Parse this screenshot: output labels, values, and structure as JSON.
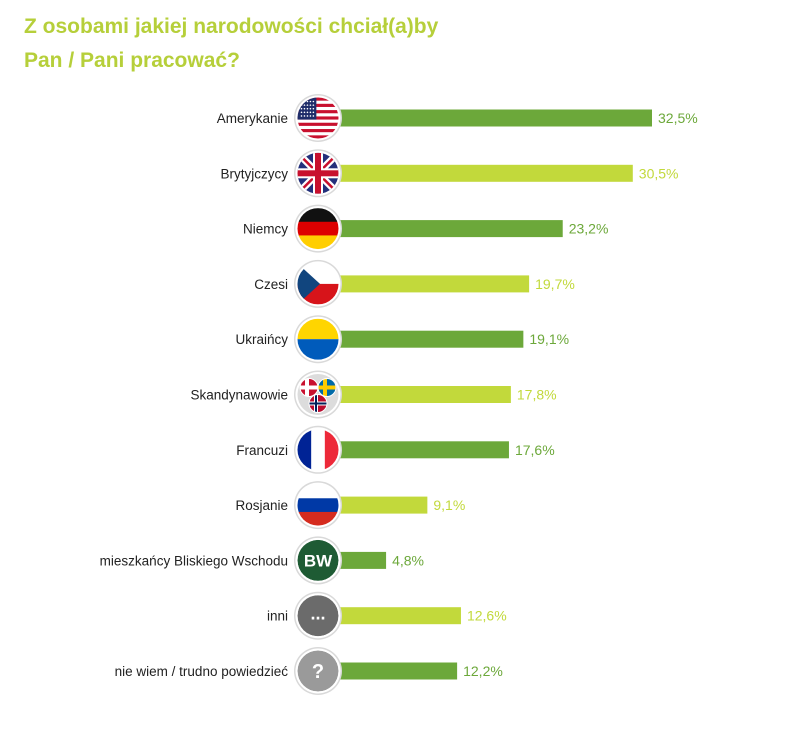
{
  "title": {
    "line1": "Z osobami jakiej narodowości chciał(a)by",
    "line2": "Pan / Pani pracować?"
  },
  "colors": {
    "title": "#b6cf3a",
    "bar_dark": "#6ca83a",
    "bar_light": "#c2d93b",
    "label": "#222222"
  },
  "chart_data": {
    "type": "bar",
    "orientation": "horizontal",
    "categories": [
      "Amerykanie",
      "Brytyjczycy",
      "Niemcy",
      "Czesi",
      "Ukraińcy",
      "Skandynawowie",
      "Francuzi",
      "Rosjanie",
      "mieszkańcy Bliskiego Wschodu",
      "inni",
      "nie wiem / trudno powiedzieć"
    ],
    "values": [
      32.5,
      30.5,
      23.2,
      19.7,
      19.1,
      17.8,
      17.6,
      9.1,
      4.8,
      12.6,
      12.2
    ],
    "value_labels": [
      "32,5%",
      "30,5%",
      "23,2%",
      "19,7%",
      "19,1%",
      "17,8%",
      "17,6%",
      "9,1%",
      "4,8%",
      "12,6%",
      "12,2%"
    ],
    "bar_color_pattern": [
      "dark",
      "light"
    ],
    "icons": [
      "us-flag-icon",
      "uk-flag-icon",
      "germany-flag-icon",
      "czech-flag-icon",
      "ukraine-flag-icon",
      "scandinavia-flags-icon",
      "france-flag-icon",
      "russia-flag-icon",
      "middle-east-bw-icon",
      "others-ellipsis-icon",
      "unknown-question-icon"
    ],
    "icon_texts": {
      "middle_east": "BW",
      "others": "...",
      "unknown": "?"
    },
    "xlim": [
      0,
      32.5
    ],
    "grid": false,
    "legend": "none"
  }
}
